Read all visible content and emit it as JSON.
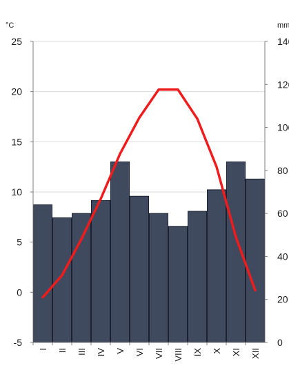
{
  "chart_data": {
    "type": "bar+line",
    "categories": [
      "I",
      "II",
      "III",
      "IV",
      "V",
      "VI",
      "VII",
      "VIII",
      "IX",
      "X",
      "XI",
      "XII"
    ],
    "series": [
      {
        "kind": "bar",
        "axis": "right",
        "values": [
          64,
          58,
          60,
          66,
          84,
          68,
          60,
          54,
          61,
          71,
          84,
          76
        ]
      },
      {
        "kind": "line",
        "axis": "left",
        "values": [
          -0.5,
          1.7,
          5.3,
          9.3,
          13.8,
          17.4,
          20.2,
          20.2,
          17.3,
          12.5,
          5.5,
          0.2
        ]
      }
    ],
    "y_left": {
      "unit": "°C",
      "ylim": [
        -5,
        25
      ],
      "ticks": [
        "-5",
        "0",
        "5",
        "10",
        "15",
        "20",
        "25"
      ]
    },
    "y_right": {
      "unit": "mm",
      "ylim": [
        0,
        140
      ],
      "ticks": [
        "0",
        "20",
        "40",
        "60",
        "80",
        "100",
        "120",
        "140"
      ]
    },
    "grid": true,
    "colors": {
      "bar": "#3f4a5f",
      "bar_edge": "#1c2230",
      "line": "#ee1c1c",
      "grid": "#d9d9d9",
      "axis": "#7f7f7f"
    }
  }
}
